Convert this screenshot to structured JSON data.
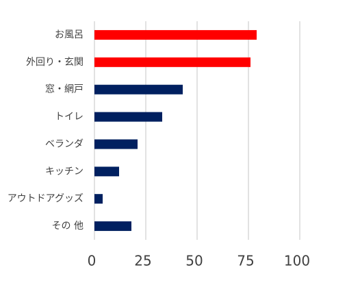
{
  "chart_data": {
    "type": "barh",
    "categories": [
      "お風呂",
      "外回り・玄関",
      "窓・網戸",
      "トイレ",
      "ベランダ",
      "キッチン",
      "アウトドアグッズ",
      "その 他"
    ],
    "values": [
      79,
      76,
      43,
      33,
      21,
      12,
      4,
      18
    ],
    "colors": [
      "#ff0000",
      "#ff0000",
      "#002060",
      "#002060",
      "#002060",
      "#002060",
      "#002060",
      "#002060"
    ],
    "xlim": [
      0,
      100
    ],
    "xticks": [
      0,
      25,
      50,
      75,
      100
    ],
    "grid": true
  }
}
